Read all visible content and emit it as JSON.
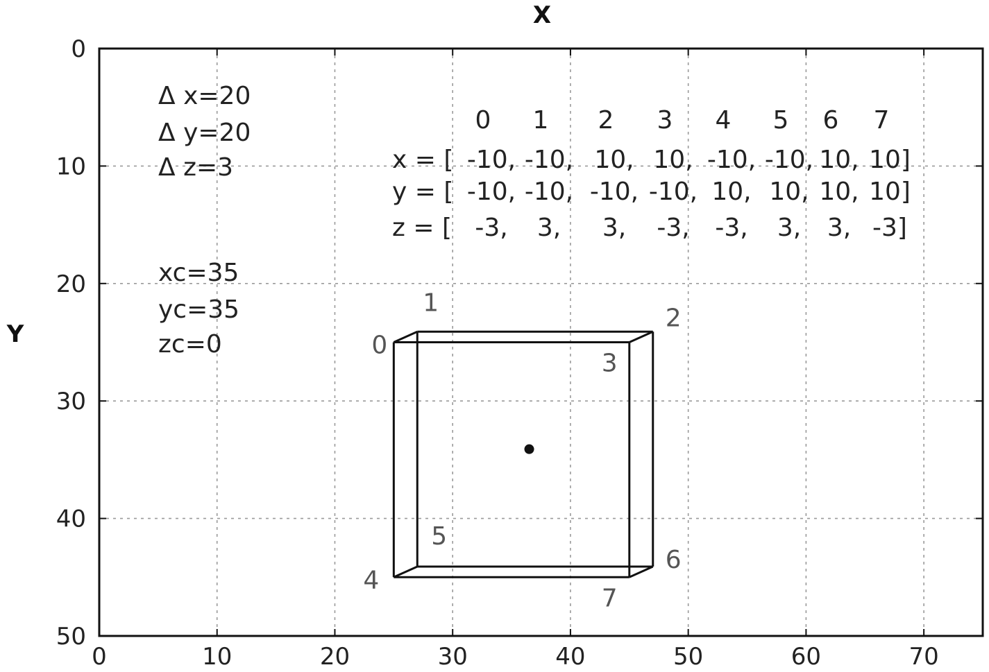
{
  "chart_data": {
    "type": "scatter",
    "title": "",
    "xlabel": "X",
    "ylabel": "Y",
    "xlim": [
      0,
      75
    ],
    "ylim": [
      50,
      0
    ],
    "xticks": [
      "0",
      "10",
      "20",
      "30",
      "40",
      "50",
      "60",
      "70"
    ],
    "yticks": [
      "0",
      "10",
      "20",
      "30",
      "40",
      "50"
    ],
    "grid": true,
    "center_point": {
      "x": 36.5,
      "y": 34.1
    },
    "vertices": [
      {
        "label": "0",
        "x": 25,
        "y": 25
      },
      {
        "label": "1",
        "x": 27,
        "y": 24.1
      },
      {
        "label": "2",
        "x": 47,
        "y": 24.1
      },
      {
        "label": "3",
        "x": 45,
        "y": 25
      },
      {
        "label": "4",
        "x": 25,
        "y": 45
      },
      {
        "label": "5",
        "x": 27,
        "y": 44.1
      },
      {
        "label": "6",
        "x": 47,
        "y": 44.1
      },
      {
        "label": "7",
        "x": 45,
        "y": 45
      }
    ],
    "edges": [
      [
        0,
        1
      ],
      [
        1,
        2
      ],
      [
        2,
        3
      ],
      [
        3,
        0
      ],
      [
        4,
        5
      ],
      [
        5,
        6
      ],
      [
        6,
        7
      ],
      [
        7,
        4
      ],
      [
        0,
        4
      ],
      [
        1,
        5
      ],
      [
        2,
        6
      ],
      [
        3,
        7
      ]
    ],
    "params": [
      "Δ x=20",
      "Δ y=20",
      "Δ z=3",
      "xc=35",
      "yc=35",
      "zc=0"
    ],
    "index_header": [
      "0",
      "1",
      "2",
      "3",
      "4",
      "5",
      "6",
      "7"
    ],
    "arrays": [
      {
        "prefix": "x = [",
        "values": [
          "-10,",
          "-10,",
          "10,",
          "10,",
          "-10,",
          "-10,",
          "10,",
          "10]"
        ]
      },
      {
        "prefix": "y = [",
        "values": [
          "-10,",
          "-10,",
          "-10,",
          "-10,",
          "10,",
          "10,",
          "10,",
          "10]"
        ]
      },
      {
        "prefix": "z = [",
        "values": [
          "-3,",
          "3,",
          "3,",
          "-3,",
          "-3,",
          "3,",
          "3,",
          "-3]"
        ]
      }
    ]
  }
}
